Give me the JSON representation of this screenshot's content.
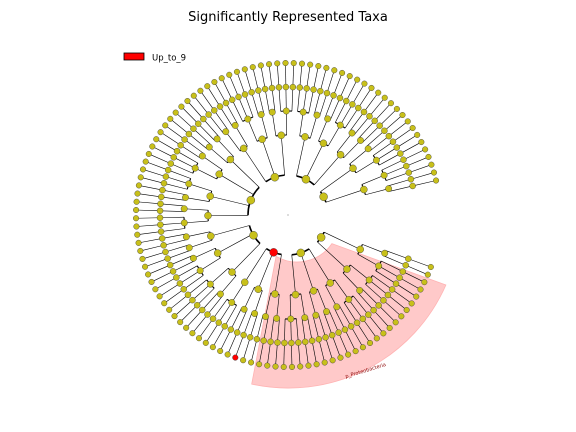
{
  "chart_data": {
    "type": "cladogram",
    "title": "Significantly Represented Taxa",
    "legend": [
      {
        "label": "Up_to_9",
        "color": "#ff0000"
      }
    ],
    "highlighted_clade": {
      "label": "p_Proteobacteria",
      "color": "#ffc9c9"
    },
    "node_color": "#c8c01a",
    "significant_color": "#ff0000",
    "significant_nodes": 2,
    "grid": false
  }
}
